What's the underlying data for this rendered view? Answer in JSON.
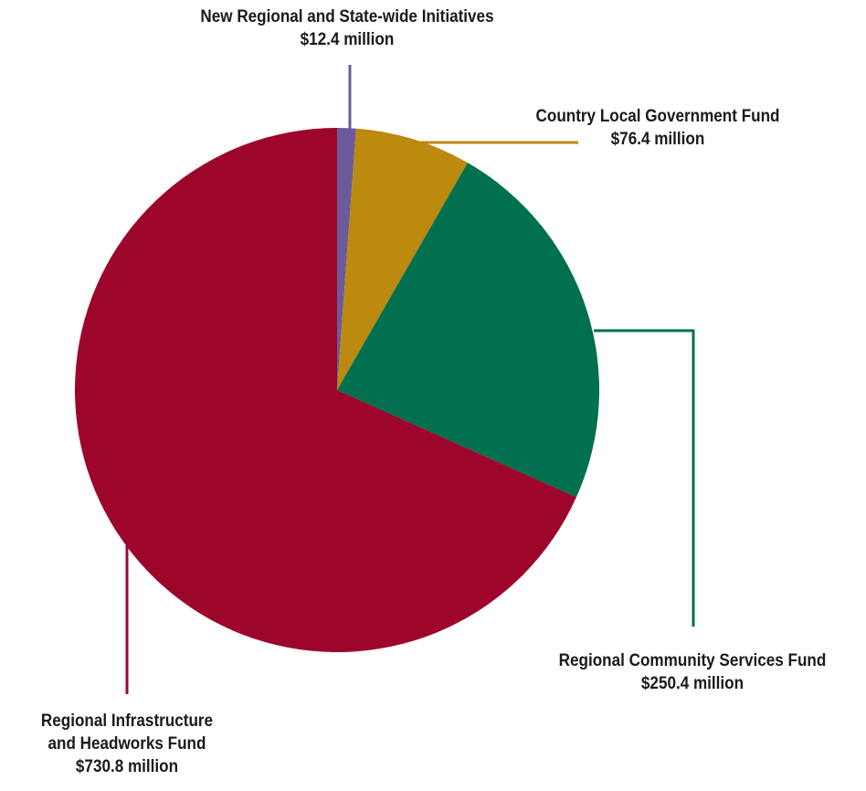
{
  "chart_data": {
    "type": "pie",
    "title": "",
    "unit": "$ million",
    "start_angle_deg": 0,
    "direction": "clockwise",
    "slices": [
      {
        "label": "New Regional and State-wide Initiatives",
        "label_lines": [
          "New Regional and State-wide Initiatives"
        ],
        "value": 12.4,
        "value_label": "$12.4 million",
        "color": "#6b5b9a"
      },
      {
        "label": "Country Local Government Fund",
        "label_lines": [
          "Country Local Government Fund"
        ],
        "value": 76.4,
        "value_label": "$76.4 million",
        "color": "#bb8a0e"
      },
      {
        "label": "Regional Community Services Fund",
        "label_lines": [
          "Regional Community Services Fund"
        ],
        "value": 250.4,
        "value_label": "$250.4 million",
        "color": "#00704f"
      },
      {
        "label": "Regional Infrastructure and Headworks Fund",
        "label_lines": [
          "Regional Infrastructure",
          "and Headworks Fund"
        ],
        "value": 730.8,
        "value_label": "$730.8 million",
        "color": "#9e052b"
      }
    ],
    "legend": "none"
  }
}
